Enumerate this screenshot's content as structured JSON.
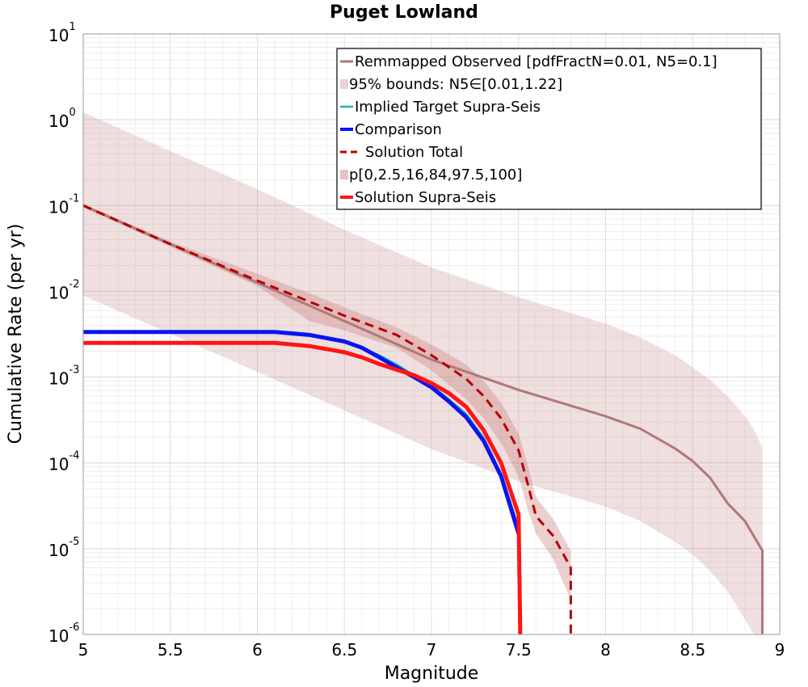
{
  "chart_data": {
    "type": "line",
    "title": "Puget Lowland",
    "xlabel": "Magnitude",
    "ylabel": "Cumulative Rate (per yr)",
    "xlim": [
      5,
      9
    ],
    "ylim": [
      1e-06,
      10
    ],
    "yscale": "log",
    "grid": true,
    "legend_position": "top-right",
    "x_ticks": [
      "5",
      "5.5",
      "6",
      "6.5",
      "7",
      "7.5",
      "8",
      "8.5",
      "9"
    ],
    "y_ticks": [
      {
        "base": "10",
        "exp": "-6"
      },
      {
        "base": "10",
        "exp": "-5"
      },
      {
        "base": "10",
        "exp": "-4"
      },
      {
        "base": "10",
        "exp": "-3"
      },
      {
        "base": "10",
        "exp": "-2"
      },
      {
        "base": "10",
        "exp": "-1"
      },
      {
        "base": "10",
        "exp": "0"
      },
      {
        "base": "10",
        "exp": "1"
      }
    ],
    "series": [
      {
        "name": "Remmapped Observed [pdfFractN=0.01, N5=0.1]",
        "kind": "line",
        "color": "#b07878",
        "dash": false,
        "width": 3,
        "x": [
          5.0,
          5.5,
          6.0,
          6.5,
          7.0,
          7.5,
          8.0,
          8.2,
          8.4,
          8.5,
          8.6,
          8.7,
          8.8,
          8.9,
          8.9
        ],
        "y": [
          0.1,
          0.0355,
          0.0126,
          0.0045,
          0.0016,
          0.00071,
          0.00035,
          0.00025,
          0.000147,
          0.000105,
          6.7e-05,
          3.4e-05,
          2.1e-05,
          9.5e-06,
          1e-06
        ]
      },
      {
        "name": "95% bounds: N5∈[0.01,1.22]",
        "kind": "band",
        "color": "#c88c8c",
        "opacity": 0.28,
        "x": [
          5.0,
          5.5,
          6.0,
          6.5,
          7.0,
          7.5,
          8.0,
          8.2,
          8.4,
          8.5,
          8.6,
          8.7,
          8.8,
          8.85,
          8.9
        ],
        "y_low": [
          0.0089,
          0.0032,
          0.00115,
          0.00041,
          0.000145,
          6.1e-05,
          3.1e-05,
          2.1e-05,
          1.2e-05,
          8.5e-06,
          5.5e-06,
          3.2e-06,
          1.5e-06,
          1e-06,
          1e-06
        ],
        "y_high": [
          1.22,
          0.43,
          0.155,
          0.052,
          0.019,
          0.0085,
          0.0042,
          0.0029,
          0.0018,
          0.0013,
          0.00092,
          0.0006,
          0.00035,
          0.00025,
          0.00015
        ]
      },
      {
        "name": "Implied Target Supra-Seis",
        "kind": "line",
        "color": "#20b2aa",
        "dash": false,
        "width": 2.5,
        "x": [
          5.0,
          6.0,
          6.1,
          6.3,
          6.5,
          6.6,
          6.7,
          6.8,
          6.9,
          7.0,
          7.1,
          7.2,
          7.3,
          7.4,
          7.5
        ],
        "y": [
          0.00335,
          0.00335,
          0.00335,
          0.0031,
          0.0026,
          0.0022,
          0.0018,
          0.0014,
          0.00105,
          0.0008,
          0.00055,
          0.00037,
          0.000195,
          7.5e-05,
          1.8e-05
        ]
      },
      {
        "name": "Comparison",
        "kind": "line",
        "color": "#0a14f0",
        "dash": false,
        "width": 5,
        "x": [
          5.0,
          6.0,
          6.1,
          6.3,
          6.5,
          6.6,
          6.7,
          6.8,
          6.9,
          7.0,
          7.1,
          7.2,
          7.3,
          7.4,
          7.5
        ],
        "y": [
          0.00335,
          0.00335,
          0.00335,
          0.0031,
          0.0026,
          0.0022,
          0.0017,
          0.0013,
          0.001,
          0.00076,
          0.00052,
          0.00034,
          0.00018,
          7e-05,
          1.5e-05
        ]
      },
      {
        "name": "Solution Total",
        "kind": "line",
        "color": "#b40000",
        "dash": true,
        "width": 3,
        "x": [
          5.0,
          5.5,
          6.0,
          6.5,
          6.8,
          7.0,
          7.2,
          7.3,
          7.4,
          7.5,
          7.55,
          7.6,
          7.7,
          7.8,
          7.8
        ],
        "y": [
          0.1,
          0.0355,
          0.0133,
          0.0052,
          0.0031,
          0.0018,
          0.00095,
          0.0006,
          0.00033,
          0.00014,
          6e-05,
          2.4e-05,
          1.4e-05,
          6e-06,
          1e-06
        ]
      },
      {
        "name": "p[0,2.5,16,84,97.5,100]",
        "kind": "band",
        "color": "#c87878",
        "opacity": 0.35,
        "x": [
          5.0,
          5.5,
          6.0,
          6.3,
          6.5,
          6.8,
          7.0,
          7.2,
          7.3,
          7.4,
          7.5,
          7.55,
          7.6,
          7.7,
          7.8
        ],
        "y_low": [
          0.095,
          0.033,
          0.0115,
          0.0045,
          0.0035,
          0.0022,
          0.0012,
          0.00055,
          0.00033,
          0.00017,
          7e-05,
          3e-05,
          1.5e-05,
          7.5e-06,
          2.5e-06
        ],
        "y_high": [
          0.105,
          0.038,
          0.016,
          0.0095,
          0.0065,
          0.0038,
          0.0024,
          0.0014,
          0.0009,
          0.0005,
          0.00022,
          0.0001,
          4e-05,
          2.2e-05,
          9.5e-06
        ]
      },
      {
        "name": "Solution Supra-Seis",
        "kind": "line",
        "color": "#ff1414",
        "dash": false,
        "width": 5,
        "x": [
          5.0,
          6.0,
          6.1,
          6.3,
          6.5,
          6.6,
          6.7,
          6.8,
          6.9,
          7.0,
          7.1,
          7.2,
          7.3,
          7.4,
          7.5,
          7.51
        ],
        "y": [
          0.0025,
          0.0025,
          0.0025,
          0.0023,
          0.00195,
          0.0017,
          0.00142,
          0.00122,
          0.00105,
          0.00085,
          0.00065,
          0.00045,
          0.00024,
          0.0001,
          2.5e-05,
          1e-06
        ]
      }
    ],
    "legend": [
      "Remmapped Observed [pdfFractN=0.01, N5=0.1]",
      "95% bounds: N5∈[0.01,1.22]",
      "Implied Target Supra-Seis",
      "Comparison",
      "Solution Total",
      "p[0,2.5,16,84,97.5,100]",
      "Solution Supra-Seis"
    ]
  }
}
